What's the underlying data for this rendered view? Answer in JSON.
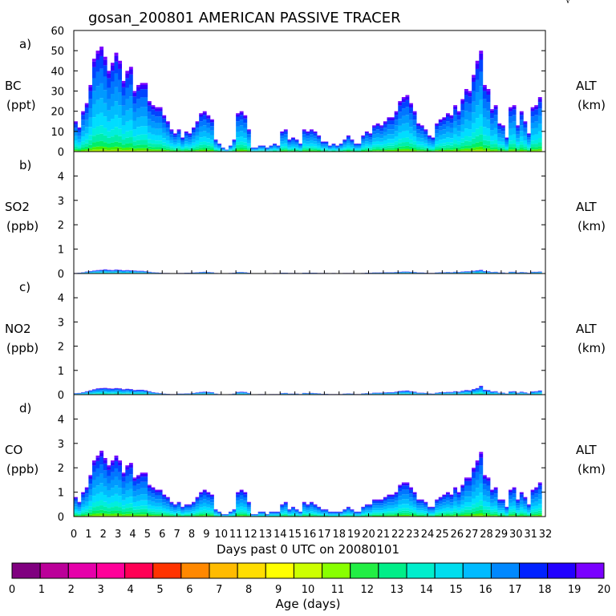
{
  "chart_data": {
    "type": "area",
    "title": "gosan_200801 AMERICAN PASSIVE TRACER",
    "corner_mark": "√",
    "xlabel": "Days past 0 UTC on 20080101",
    "x_ticks": [
      "0",
      "1",
      "2",
      "3",
      "4",
      "5",
      "6",
      "7",
      "8",
      "9",
      "10",
      "11",
      "12",
      "13",
      "14",
      "15",
      "16",
      "17",
      "18",
      "19",
      "20",
      "21",
      "22",
      "23",
      "24",
      "25",
      "26",
      "27",
      "28",
      "29",
      "30",
      "31",
      "32"
    ],
    "xlim": [
      0,
      32
    ],
    "x": [
      0,
      0.25,
      0.5,
      0.75,
      1,
      1.25,
      1.5,
      1.75,
      2,
      2.25,
      2.5,
      2.75,
      3,
      3.25,
      3.5,
      3.75,
      4,
      4.25,
      4.5,
      4.75,
      5,
      5.25,
      5.5,
      5.75,
      6,
      6.25,
      6.5,
      6.75,
      7,
      7.25,
      7.5,
      7.75,
      8,
      8.25,
      8.5,
      8.75,
      9,
      9.25,
      9.5,
      9.75,
      10,
      10.25,
      10.5,
      10.75,
      11,
      11.25,
      11.5,
      11.75,
      12,
      12.25,
      12.5,
      12.75,
      13,
      13.25,
      13.5,
      13.75,
      14,
      14.25,
      14.5,
      14.75,
      15,
      15.25,
      15.5,
      15.75,
      16,
      16.25,
      16.5,
      16.75,
      17,
      17.25,
      17.5,
      17.75,
      18,
      18.25,
      18.5,
      18.75,
      19,
      19.25,
      19.5,
      19.75,
      20,
      20.25,
      20.5,
      20.75,
      21,
      21.25,
      21.5,
      21.75,
      22,
      22.25,
      22.5,
      22.75,
      23,
      23.25,
      23.5,
      23.75,
      24,
      24.25,
      24.5,
      24.75,
      25,
      25.25,
      25.5,
      25.75,
      26,
      26.25,
      26.5,
      26.75,
      27,
      27.25,
      27.5,
      27.75,
      28,
      28.25,
      28.5,
      28.75,
      29,
      29.25,
      29.5,
      29.75,
      30,
      30.25,
      30.5,
      30.75,
      31,
      31.25,
      31.5
    ],
    "panels": [
      {
        "letter": "a)",
        "species": "BC",
        "unit": "(ppt)",
        "right_label": "ALT",
        "right_unit": "(km)",
        "ylim": [
          0,
          60
        ],
        "yticks": [
          "0",
          "10",
          "20",
          "30",
          "40",
          "50",
          "60"
        ],
        "totals": [
          15,
          12,
          20,
          24,
          33,
          46,
          50,
          52,
          47,
          40,
          44,
          49,
          45,
          35,
          40,
          42,
          30,
          33,
          34,
          34,
          25,
          23,
          22,
          22,
          18,
          15,
          11,
          9,
          11,
          7,
          10,
          9,
          12,
          15,
          19,
          20,
          18,
          16,
          6,
          4,
          2,
          1,
          3,
          6,
          19,
          20,
          18,
          11,
          2,
          2,
          3,
          3,
          2,
          3,
          4,
          3,
          10,
          11,
          6,
          7,
          6,
          4,
          11,
          10,
          11,
          10,
          8,
          5,
          5,
          3,
          4,
          3,
          4,
          6,
          8,
          6,
          4,
          4,
          8,
          10,
          9,
          13,
          14,
          13,
          15,
          17,
          17,
          20,
          25,
          27,
          28,
          24,
          20,
          14,
          13,
          11,
          8,
          7,
          14,
          16,
          17,
          19,
          18,
          23,
          20,
          26,
          31,
          30,
          38,
          45,
          50,
          33,
          31,
          21,
          23,
          14,
          13,
          7,
          22,
          23,
          13,
          20,
          15,
          9,
          22,
          23,
          27
        ],
        "age_fractions": [
          0.02,
          0.03,
          0.05,
          0.07,
          0.08,
          0.12,
          0.14,
          0.14,
          0.14,
          0.12,
          0.06,
          0.03
        ]
      },
      {
        "letter": "b)",
        "species": "SO2",
        "unit": "(ppb)",
        "right_label": "ALT",
        "right_unit": "(km)",
        "ylim": [
          0,
          5
        ],
        "yticks": [
          "0",
          "1",
          "2",
          "3",
          "4",
          ""
        ],
        "totals": [
          0.02,
          0.03,
          0.05,
          0.08,
          0.1,
          0.12,
          0.14,
          0.15,
          0.17,
          0.15,
          0.14,
          0.16,
          0.15,
          0.13,
          0.14,
          0.13,
          0.12,
          0.11,
          0.11,
          0.09,
          0.07,
          0.05,
          0.04,
          0.03,
          0.02,
          0.02,
          0.01,
          0.01,
          0.02,
          0.02,
          0.03,
          0.03,
          0.04,
          0.05,
          0.06,
          0.07,
          0.06,
          0.05,
          0.02,
          0.01,
          0.01,
          0.01,
          0.02,
          0.03,
          0.06,
          0.06,
          0.05,
          0.03,
          0.01,
          0.01,
          0.01,
          0.01,
          0.01,
          0.01,
          0.02,
          0.01,
          0.03,
          0.03,
          0.02,
          0.02,
          0.02,
          0.01,
          0.03,
          0.03,
          0.03,
          0.03,
          0.02,
          0.02,
          0.02,
          0.01,
          0.02,
          0.01,
          0.01,
          0.02,
          0.02,
          0.02,
          0.01,
          0.01,
          0.02,
          0.03,
          0.03,
          0.04,
          0.04,
          0.04,
          0.05,
          0.05,
          0.05,
          0.06,
          0.07,
          0.08,
          0.08,
          0.07,
          0.06,
          0.04,
          0.04,
          0.03,
          0.02,
          0.02,
          0.04,
          0.05,
          0.05,
          0.06,
          0.05,
          0.07,
          0.06,
          0.08,
          0.09,
          0.09,
          0.11,
          0.13,
          0.15,
          0.1,
          0.09,
          0.06,
          0.07,
          0.04,
          0.04,
          0.02,
          0.07,
          0.07,
          0.04,
          0.06,
          0.05,
          0.03,
          0.07,
          0.07,
          0.08
        ],
        "age_fractions": [
          0.02,
          0.03,
          0.05,
          0.07,
          0.08,
          0.12,
          0.14,
          0.14,
          0.14,
          0.12,
          0.06,
          0.03
        ]
      },
      {
        "letter": "c)",
        "species": "NO2",
        "unit": "(ppb)",
        "right_label": "ALT",
        "right_unit": "(km)",
        "ylim": [
          0,
          5
        ],
        "yticks": [
          "0",
          "1",
          "2",
          "3",
          "4",
          ""
        ],
        "totals": [
          0.06,
          0.07,
          0.1,
          0.14,
          0.18,
          0.22,
          0.26,
          0.27,
          0.28,
          0.26,
          0.25,
          0.27,
          0.26,
          0.22,
          0.24,
          0.23,
          0.19,
          0.2,
          0.2,
          0.18,
          0.14,
          0.1,
          0.08,
          0.06,
          0.04,
          0.03,
          0.02,
          0.02,
          0.04,
          0.04,
          0.05,
          0.05,
          0.07,
          0.09,
          0.11,
          0.12,
          0.11,
          0.1,
          0.04,
          0.02,
          0.01,
          0.01,
          0.02,
          0.04,
          0.11,
          0.12,
          0.11,
          0.07,
          0.01,
          0.01,
          0.02,
          0.02,
          0.01,
          0.02,
          0.02,
          0.02,
          0.06,
          0.07,
          0.04,
          0.04,
          0.04,
          0.02,
          0.07,
          0.06,
          0.07,
          0.06,
          0.05,
          0.03,
          0.03,
          0.02,
          0.02,
          0.02,
          0.02,
          0.04,
          0.05,
          0.04,
          0.02,
          0.02,
          0.05,
          0.06,
          0.05,
          0.08,
          0.08,
          0.08,
          0.09,
          0.1,
          0.1,
          0.12,
          0.15,
          0.16,
          0.17,
          0.14,
          0.12,
          0.08,
          0.08,
          0.07,
          0.05,
          0.04,
          0.08,
          0.1,
          0.1,
          0.11,
          0.11,
          0.14,
          0.12,
          0.16,
          0.19,
          0.18,
          0.23,
          0.27,
          0.36,
          0.2,
          0.19,
          0.13,
          0.14,
          0.08,
          0.08,
          0.04,
          0.13,
          0.14,
          0.08,
          0.12,
          0.09,
          0.05,
          0.13,
          0.14,
          0.17
        ],
        "age_fractions": [
          0.02,
          0.03,
          0.05,
          0.07,
          0.08,
          0.12,
          0.14,
          0.14,
          0.14,
          0.12,
          0.06,
          0.03
        ]
      },
      {
        "letter": "d)",
        "species": "CO",
        "unit": "(ppb)",
        "right_label": "ALT",
        "right_unit": "(km)",
        "ylim": [
          0,
          5
        ],
        "yticks": [
          "0",
          "1",
          "2",
          "3",
          "4",
          ""
        ],
        "totals": [
          0.8,
          0.6,
          1.0,
          1.2,
          1.7,
          2.3,
          2.5,
          2.7,
          2.4,
          2.1,
          2.3,
          2.5,
          2.3,
          1.8,
          2.1,
          2.2,
          1.6,
          1.7,
          1.8,
          1.8,
          1.3,
          1.2,
          1.1,
          1.1,
          0.9,
          0.8,
          0.6,
          0.5,
          0.6,
          0.4,
          0.5,
          0.5,
          0.6,
          0.8,
          1.0,
          1.1,
          1.0,
          0.9,
          0.3,
          0.2,
          0.1,
          0.1,
          0.2,
          0.3,
          1.0,
          1.1,
          1.0,
          0.6,
          0.1,
          0.1,
          0.2,
          0.2,
          0.1,
          0.2,
          0.2,
          0.2,
          0.5,
          0.6,
          0.3,
          0.4,
          0.3,
          0.2,
          0.6,
          0.5,
          0.6,
          0.5,
          0.4,
          0.3,
          0.3,
          0.2,
          0.2,
          0.2,
          0.2,
          0.3,
          0.4,
          0.3,
          0.2,
          0.2,
          0.4,
          0.5,
          0.5,
          0.7,
          0.7,
          0.7,
          0.8,
          0.9,
          0.9,
          1.0,
          1.3,
          1.4,
          1.4,
          1.2,
          1.0,
          0.7,
          0.7,
          0.6,
          0.4,
          0.4,
          0.7,
          0.8,
          0.9,
          1.0,
          0.9,
          1.2,
          1.0,
          1.3,
          1.6,
          1.6,
          2.0,
          2.3,
          2.65,
          1.7,
          1.6,
          1.1,
          1.2,
          0.7,
          0.7,
          0.4,
          1.1,
          1.2,
          0.7,
          1.0,
          0.8,
          0.5,
          1.1,
          1.2,
          1.4
        ],
        "age_fractions": [
          0.02,
          0.03,
          0.05,
          0.07,
          0.08,
          0.12,
          0.14,
          0.14,
          0.14,
          0.12,
          0.06,
          0.03
        ]
      }
    ],
    "colorbar": {
      "label": "Age (days)",
      "tick_labels": [
        "0",
        "1",
        "2",
        "3",
        "4",
        "5",
        "6",
        "7",
        "8",
        "9",
        "10",
        "11",
        "12",
        "13",
        "14",
        "15",
        "16",
        "17",
        "18",
        "19",
        "20"
      ],
      "colors": [
        "#800080",
        "#bb0099",
        "#e600aa",
        "#ff0099",
        "#ff0055",
        "#ff3300",
        "#ff8800",
        "#ffbb00",
        "#ffdd00",
        "#ffff00",
        "#ccff00",
        "#88ff00",
        "#22ee44",
        "#00ee88",
        "#00eecc",
        "#00ddee",
        "#00bbff",
        "#0088ff",
        "#0022ff",
        "#2200ff",
        "#7a00ff"
      ]
    },
    "stack_colors": [
      "#aaee00",
      "#44ee00",
      "#00ee66",
      "#00eeaa",
      "#00eedd",
      "#00ddff",
      "#00bbff",
      "#0099ff",
      "#0077ff",
      "#0044ff",
      "#3300ff",
      "#7a00ff"
    ]
  }
}
